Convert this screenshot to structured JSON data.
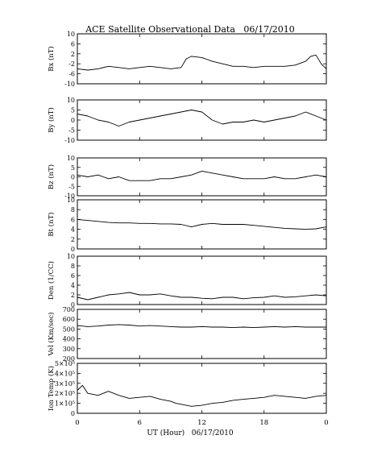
{
  "chart_data": {
    "type": "line",
    "title": "ACE Satellite Observational Data   06/17/2010",
    "xlabel": "UT (Hour)   06/17/2010",
    "x_tick_labels": [
      "0",
      "6",
      "12",
      "18",
      "0"
    ],
    "x_tick_hours": [
      0,
      6,
      12,
      18,
      24
    ],
    "xlim": [
      0,
      24
    ],
    "line_color": "#000000",
    "panels": [
      {
        "key": "bx",
        "ylabel": "Bx (nT)",
        "ylim": [
          -10,
          10
        ],
        "ticks": [
          {
            "value": 10,
            "label": "10"
          },
          {
            "value": 6,
            "label": "6"
          },
          {
            "value": 2,
            "label": "2"
          },
          {
            "value": -2,
            "label": "-2"
          },
          {
            "value": -6,
            "label": "-6"
          },
          {
            "value": -10,
            "label": "-10"
          }
        ],
        "x": [
          0,
          1,
          2,
          3,
          4,
          5,
          6,
          7,
          8,
          9,
          10,
          10.5,
          11,
          12,
          13,
          14,
          15,
          16,
          17,
          18,
          19,
          20,
          21,
          22,
          22.5,
          23,
          23.5,
          24
        ],
        "values": [
          -4,
          -4.5,
          -4,
          -3,
          -3.5,
          -4,
          -3.5,
          -3,
          -3.5,
          -4,
          -3.5,
          0,
          1,
          0.5,
          -1,
          -2,
          -3,
          -3,
          -3.5,
          -3,
          -3,
          -3,
          -2.5,
          -1,
          1,
          1.5,
          -2,
          -4
        ]
      },
      {
        "key": "by",
        "ylabel": "By (nT)",
        "ylim": [
          -10,
          10
        ],
        "ticks": [
          {
            "value": 10,
            "label": "10"
          },
          {
            "value": 5,
            "label": "5"
          },
          {
            "value": 0,
            "label": "0"
          },
          {
            "value": -5,
            "label": "-5"
          },
          {
            "value": -10,
            "label": "-10"
          }
        ],
        "x": [
          0,
          1,
          2,
          3,
          4,
          5,
          6,
          7,
          8,
          9,
          10,
          11,
          12,
          13,
          14,
          15,
          16,
          17,
          18,
          19,
          20,
          21,
          22,
          23,
          24
        ],
        "values": [
          3,
          2,
          0,
          -1,
          -3,
          -1,
          0,
          1,
          2,
          3,
          4,
          5,
          4,
          0,
          -2,
          -1,
          -1,
          0,
          -1,
          0,
          1,
          2,
          4,
          2,
          0
        ]
      },
      {
        "key": "bz",
        "ylabel": "Bz (nT)",
        "ylim": [
          -10,
          10
        ],
        "ticks": [
          {
            "value": 10,
            "label": "10"
          },
          {
            "value": 5,
            "label": "5"
          },
          {
            "value": 0,
            "label": "0"
          },
          {
            "value": -5,
            "label": "-5"
          },
          {
            "value": -10,
            "label": "-10"
          }
        ],
        "x": [
          0,
          1,
          2,
          3,
          4,
          5,
          6,
          7,
          8,
          9,
          10,
          11,
          12,
          13,
          14,
          15,
          16,
          17,
          18,
          19,
          20,
          21,
          22,
          23,
          24
        ],
        "values": [
          1,
          0,
          1,
          -1,
          0,
          -2,
          -2,
          -2,
          -1,
          -1,
          0,
          1,
          3,
          2,
          1,
          0,
          -1,
          -1,
          -1,
          0,
          -1,
          -1,
          0,
          1,
          0
        ]
      },
      {
        "key": "bt",
        "ylabel": "Bt (nT)",
        "ylim": [
          0,
          10
        ],
        "ticks": [
          {
            "value": 10,
            "label": "10"
          },
          {
            "value": 8,
            "label": "8"
          },
          {
            "value": 6,
            "label": "6"
          },
          {
            "value": 4,
            "label": "4"
          },
          {
            "value": 2,
            "label": "2"
          },
          {
            "value": 0,
            "label": "0"
          }
        ],
        "x": [
          0,
          1,
          2,
          3,
          4,
          5,
          6,
          7,
          8,
          9,
          10,
          11,
          12,
          13,
          14,
          15,
          16,
          17,
          18,
          19,
          20,
          21,
          22,
          23,
          24
        ],
        "values": [
          6,
          5.8,
          5.6,
          5.4,
          5.3,
          5.3,
          5.2,
          5.2,
          5.1,
          5.1,
          5,
          4.5,
          5,
          5.2,
          5,
          5,
          5,
          4.8,
          4.6,
          4.4,
          4.2,
          4.1,
          4,
          4.1,
          4.5
        ]
      },
      {
        "key": "den",
        "ylabel": "Den (1/CC)",
        "ylim": [
          0,
          10
        ],
        "ticks": [
          {
            "value": 10,
            "label": "10"
          },
          {
            "value": 8,
            "label": "8"
          },
          {
            "value": 6,
            "label": "6"
          },
          {
            "value": 4,
            "label": "4"
          },
          {
            "value": 2,
            "label": "2"
          },
          {
            "value": 0,
            "label": "0"
          }
        ],
        "x": [
          0,
          1,
          2,
          3,
          4,
          5,
          6,
          7,
          8,
          9,
          10,
          11,
          12,
          13,
          14,
          15,
          16,
          17,
          18,
          19,
          20,
          21,
          22,
          23,
          24
        ],
        "values": [
          1.5,
          1,
          1.5,
          2,
          2.2,
          2.5,
          2,
          2,
          2.2,
          1.8,
          1.5,
          1.5,
          1.3,
          1.2,
          1.5,
          1.5,
          1.2,
          1.4,
          1.5,
          1.8,
          1.5,
          1.6,
          1.8,
          2,
          1.8
        ]
      },
      {
        "key": "vel",
        "ylabel": "Vel (Km/sec)",
        "ylim": [
          200,
          700
        ],
        "ticks": [
          {
            "value": 700,
            "label": "700"
          },
          {
            "value": 600,
            "label": "600"
          },
          {
            "value": 500,
            "label": "500"
          },
          {
            "value": 400,
            "label": "400"
          },
          {
            "value": 300,
            "label": "300"
          },
          {
            "value": 200,
            "label": "200"
          }
        ],
        "x": [
          0,
          1,
          2,
          3,
          4,
          5,
          6,
          7,
          8,
          9,
          10,
          11,
          12,
          13,
          14,
          15,
          16,
          17,
          18,
          19,
          20,
          21,
          22,
          23,
          24
        ],
        "values": [
          535,
          525,
          530,
          540,
          545,
          540,
          530,
          535,
          530,
          525,
          520,
          520,
          525,
          520,
          520,
          515,
          520,
          515,
          520,
          525,
          520,
          525,
          520,
          520,
          520
        ]
      },
      {
        "key": "temp",
        "ylabel": "Ion Temp (K)",
        "ylim": [
          0,
          500000
        ],
        "ticks": [
          {
            "value": 500000,
            "label": "5×10⁵"
          },
          {
            "value": 400000,
            "label": "4×10⁵"
          },
          {
            "value": 300000,
            "label": "3×10⁵"
          },
          {
            "value": 200000,
            "label": "2×10⁵"
          },
          {
            "value": 100000,
            "label": "1×10⁵"
          },
          {
            "value": 0,
            "label": "0"
          }
        ],
        "x": [
          0,
          0.5,
          1,
          2,
          3,
          4,
          5,
          6,
          7,
          8,
          9,
          9.5,
          10,
          11,
          12,
          13,
          14,
          15,
          16,
          17,
          18,
          19,
          20,
          21,
          22,
          23,
          24
        ],
        "values": [
          230000,
          280000,
          200000,
          180000,
          220000,
          180000,
          150000,
          160000,
          170000,
          140000,
          120000,
          100000,
          90000,
          70000,
          80000,
          100000,
          110000,
          130000,
          140000,
          150000,
          160000,
          180000,
          170000,
          160000,
          150000,
          170000,
          180000
        ]
      }
    ]
  }
}
